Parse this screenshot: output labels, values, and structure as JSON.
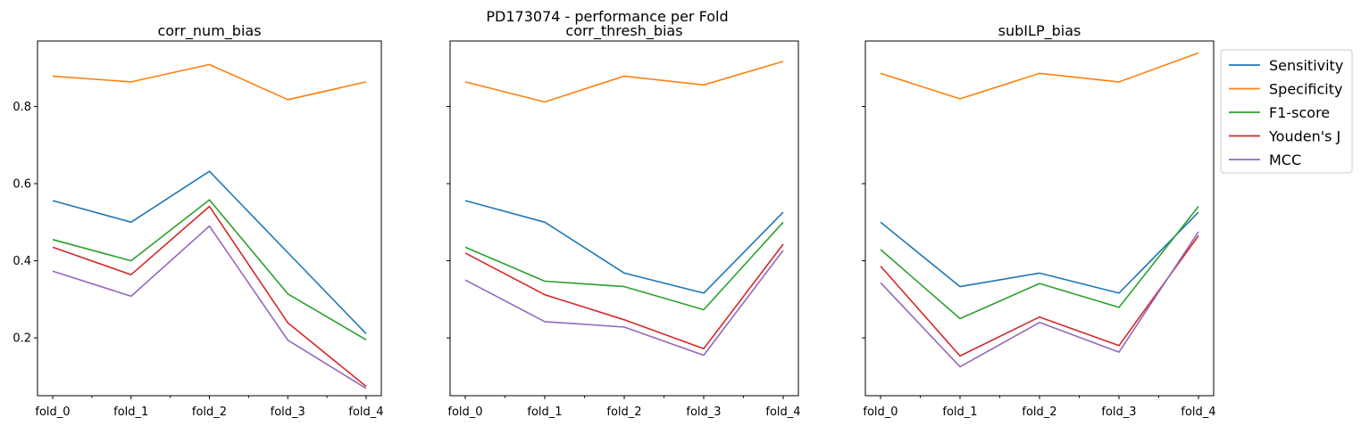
{
  "suptitle": "PD173074 - performance per Fold",
  "colors": {
    "Sensitivity": "#1f77b4",
    "Specificity": "#ff7f0e",
    "F1-score": "#2ca02c",
    "Youden's J": "#d62728",
    "MCC": "#9467bd"
  },
  "legend": {
    "placement": "outside upper right of last panel",
    "entries": [
      "Sensitivity",
      "Specificity",
      "F1-score",
      "Youden's J",
      "MCC"
    ]
  },
  "chart_data": [
    {
      "type": "line",
      "title": "corr_num_bias",
      "xlabel": "",
      "ylabel": "",
      "categories": [
        "fold_0",
        "fold_1",
        "fold_2",
        "fold_3",
        "fold_4"
      ],
      "ylim": [
        0.05,
        0.97
      ],
      "yticks": [
        "0.2",
        "0.4",
        "0.6",
        "0.8"
      ],
      "grid": false,
      "series": [
        {
          "name": "Sensitivity",
          "values": [
            0.556,
            0.5,
            0.632,
            0.421,
            0.211
          ]
        },
        {
          "name": "Specificity",
          "values": [
            0.879,
            0.864,
            0.909,
            0.818,
            0.864
          ]
        },
        {
          "name": "F1-score",
          "values": [
            0.455,
            0.4,
            0.558,
            0.314,
            0.195
          ]
        },
        {
          "name": "Youden's J",
          "values": [
            0.435,
            0.364,
            0.541,
            0.239,
            0.074
          ]
        },
        {
          "name": "MCC",
          "values": [
            0.373,
            0.308,
            0.49,
            0.194,
            0.069
          ]
        }
      ]
    },
    {
      "type": "line",
      "title": "corr_thresh_bias",
      "xlabel": "",
      "ylabel": "",
      "categories": [
        "fold_0",
        "fold_1",
        "fold_2",
        "fold_3",
        "fold_4"
      ],
      "ylim": [
        0.05,
        0.97
      ],
      "yticks": [],
      "grid": false,
      "series": [
        {
          "name": "Sensitivity",
          "values": [
            0.556,
            0.5,
            0.368,
            0.316,
            0.526
          ]
        },
        {
          "name": "Specificity",
          "values": [
            0.864,
            0.812,
            0.879,
            0.856,
            0.917
          ]
        },
        {
          "name": "F1-score",
          "values": [
            0.435,
            0.347,
            0.333,
            0.273,
            0.5
          ]
        },
        {
          "name": "Youden's J",
          "values": [
            0.42,
            0.312,
            0.247,
            0.172,
            0.443
          ]
        },
        {
          "name": "MCC",
          "values": [
            0.35,
            0.242,
            0.228,
            0.155,
            0.427
          ]
        }
      ]
    },
    {
      "type": "line",
      "title": "subILP_bias",
      "xlabel": "",
      "ylabel": "",
      "categories": [
        "fold_0",
        "fold_1",
        "fold_2",
        "fold_3",
        "fold_4"
      ],
      "ylim": [
        0.05,
        0.97
      ],
      "yticks": [],
      "grid": false,
      "series": [
        {
          "name": "Sensitivity",
          "values": [
            0.5,
            0.333,
            0.368,
            0.316,
            0.526
          ]
        },
        {
          "name": "Specificity",
          "values": [
            0.886,
            0.82,
            0.886,
            0.864,
            0.939
          ]
        },
        {
          "name": "F1-score",
          "values": [
            0.429,
            0.25,
            0.341,
            0.279,
            0.541
          ]
        },
        {
          "name": "Youden's J",
          "values": [
            0.386,
            0.153,
            0.254,
            0.18,
            0.465
          ]
        },
        {
          "name": "MCC",
          "values": [
            0.343,
            0.125,
            0.24,
            0.163,
            0.475
          ]
        }
      ]
    }
  ]
}
